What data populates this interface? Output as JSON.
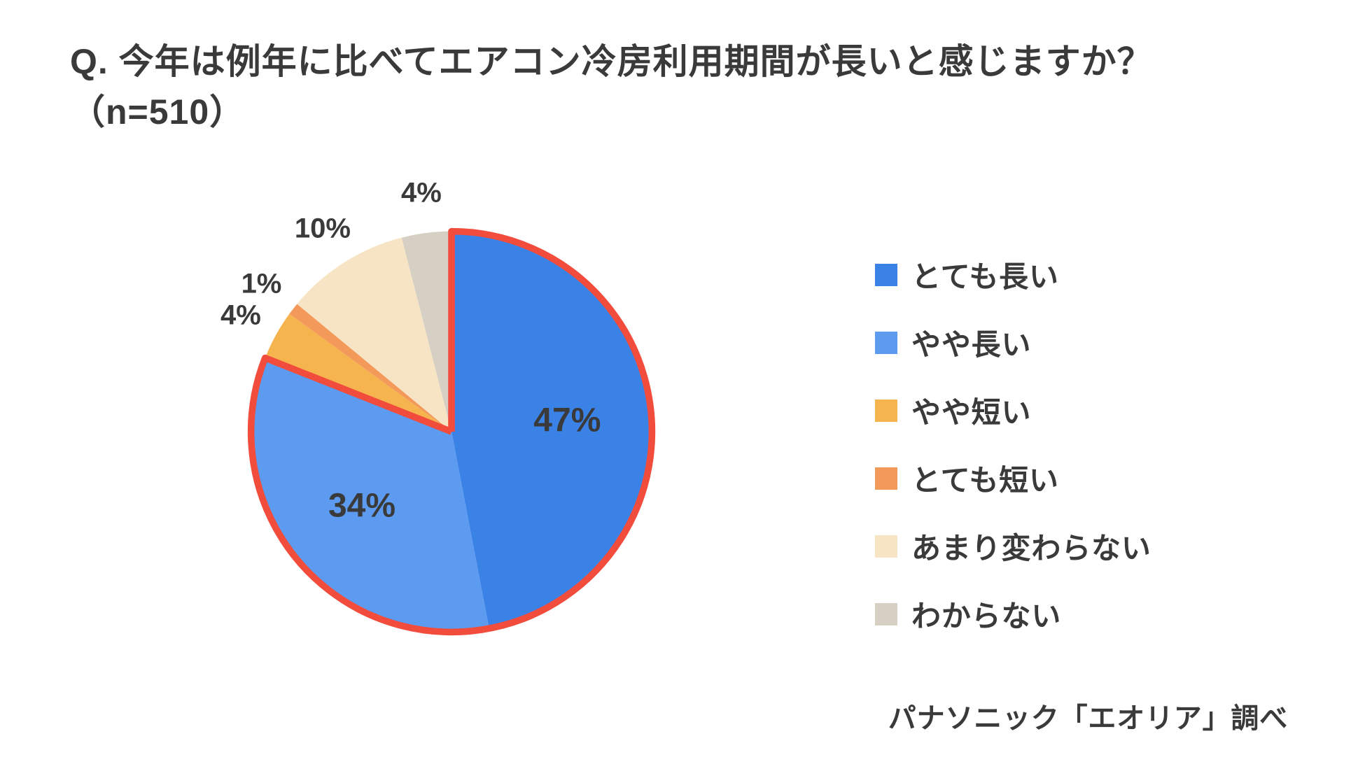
{
  "title": "Q. 今年は例年に比べてエアコン冷房利用期間が長いと感じますか？（n=510）",
  "source": "パナソニック「エオリア」調べ",
  "chart": {
    "type": "pie",
    "background_color": "#ffffff",
    "title_fontsize": 50,
    "label_fontsize_inner": 48,
    "label_fontsize_outer": 40,
    "legend_fontsize": 42,
    "highlight_stroke_color": "#f24c3d",
    "highlight_stroke_width": 10,
    "slices": [
      {
        "label": "とても長い",
        "value": 47,
        "color": "#3b82e6",
        "display": "47%",
        "highlighted": true,
        "label_inside": true
      },
      {
        "label": "やや長い",
        "value": 34,
        "color": "#5c9bf0",
        "display": "34%",
        "highlighted": true,
        "label_inside": true
      },
      {
        "label": "やや短い",
        "value": 4,
        "color": "#f5b44e",
        "display": "4%",
        "highlighted": false,
        "label_inside": false
      },
      {
        "label": "とても短い",
        "value": 1,
        "color": "#f39a5b",
        "display": "1%",
        "highlighted": false,
        "label_inside": false
      },
      {
        "label": "あまり変わらない",
        "value": 10,
        "color": "#f7e4c4",
        "display": "10%",
        "highlighted": false,
        "label_inside": false
      },
      {
        "label": "わからない",
        "value": 4,
        "color": "#d6cfc4",
        "display": "4%",
        "highlighted": false,
        "label_inside": false
      }
    ],
    "legend_order": [
      0,
      1,
      2,
      3,
      4,
      5
    ]
  }
}
